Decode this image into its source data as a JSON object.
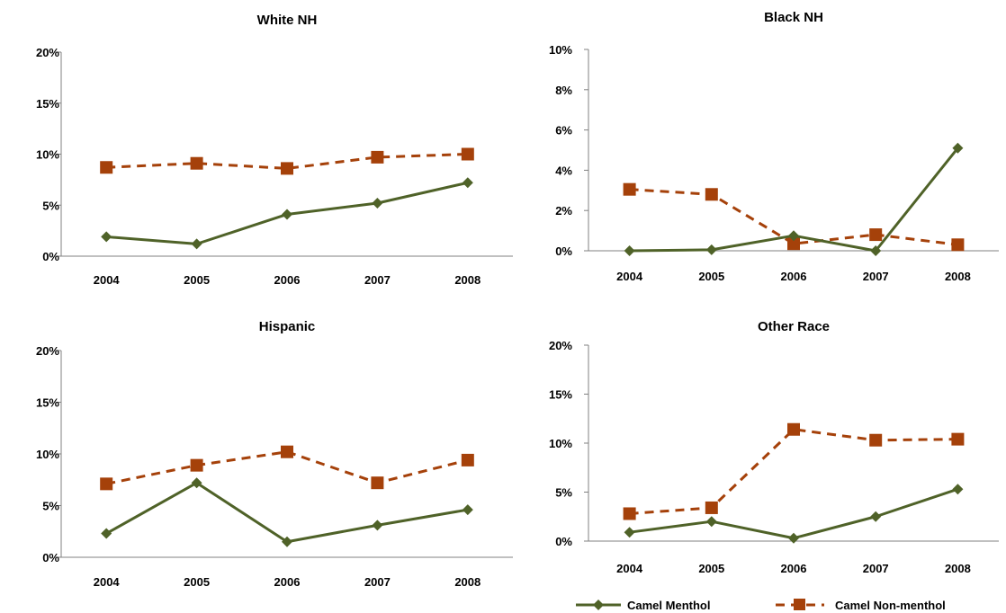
{
  "chart_data": [
    {
      "type": "line",
      "title": "White NH",
      "categories": [
        "2004",
        "2005",
        "2006",
        "2007",
        "2008"
      ],
      "ylim": [
        0,
        20
      ],
      "yticks": [
        "0%",
        "5%",
        "10%",
        "15%",
        "20%"
      ],
      "series": [
        {
          "name": "Camel Menthol",
          "values": [
            1.9,
            1.2,
            4.1,
            5.2,
            7.2
          ]
        },
        {
          "name": "Camel Non-menthol",
          "values": [
            8.7,
            9.1,
            8.6,
            9.7,
            10.0
          ]
        }
      ]
    },
    {
      "type": "line",
      "title": "Black NH",
      "categories": [
        "2004",
        "2005",
        "2006",
        "2007",
        "2008"
      ],
      "ylim": [
        0,
        10
      ],
      "yticks": [
        "0%",
        "2%",
        "4%",
        "6%",
        "8%",
        "10%"
      ],
      "series": [
        {
          "name": "Camel Menthol",
          "values": [
            0.0,
            0.05,
            0.75,
            0.0,
            5.1
          ]
        },
        {
          "name": "Camel Non-menthol",
          "values": [
            3.05,
            2.8,
            0.35,
            0.8,
            0.3
          ]
        }
      ]
    },
    {
      "type": "line",
      "title": "Hispanic",
      "categories": [
        "2004",
        "2005",
        "2006",
        "2007",
        "2008"
      ],
      "ylim": [
        0,
        20
      ],
      "yticks": [
        "0%",
        "5%",
        "10%",
        "15%",
        "20%"
      ],
      "series": [
        {
          "name": "Camel Menthol",
          "values": [
            2.3,
            7.2,
            1.5,
            3.1,
            4.6
          ]
        },
        {
          "name": "Camel Non-menthol",
          "values": [
            7.1,
            8.9,
            10.2,
            7.2,
            9.4
          ]
        }
      ]
    },
    {
      "type": "line",
      "title": "Other Race",
      "categories": [
        "2004",
        "2005",
        "2006",
        "2007",
        "2008"
      ],
      "ylim": [
        0,
        20
      ],
      "yticks": [
        "0%",
        "5%",
        "10%",
        "15%",
        "20%"
      ],
      "series": [
        {
          "name": "Camel Menthol",
          "values": [
            0.9,
            2.0,
            0.3,
            2.5,
            5.3
          ]
        },
        {
          "name": "Camel Non-menthol",
          "values": [
            2.8,
            3.4,
            11.4,
            10.3,
            10.4
          ]
        }
      ]
    }
  ],
  "legend": {
    "position": "bottom-right",
    "items": [
      {
        "label": "Camel Menthol",
        "color": "#4f6228",
        "marker": "diamond",
        "line": "solid"
      },
      {
        "label": "Camel Non-menthol",
        "color": "#a5410a",
        "marker": "square",
        "line": "dashed"
      }
    ]
  },
  "colors": {
    "menthol": "#4f6228",
    "nonmenthol": "#a5410a",
    "axis": "#808080"
  }
}
